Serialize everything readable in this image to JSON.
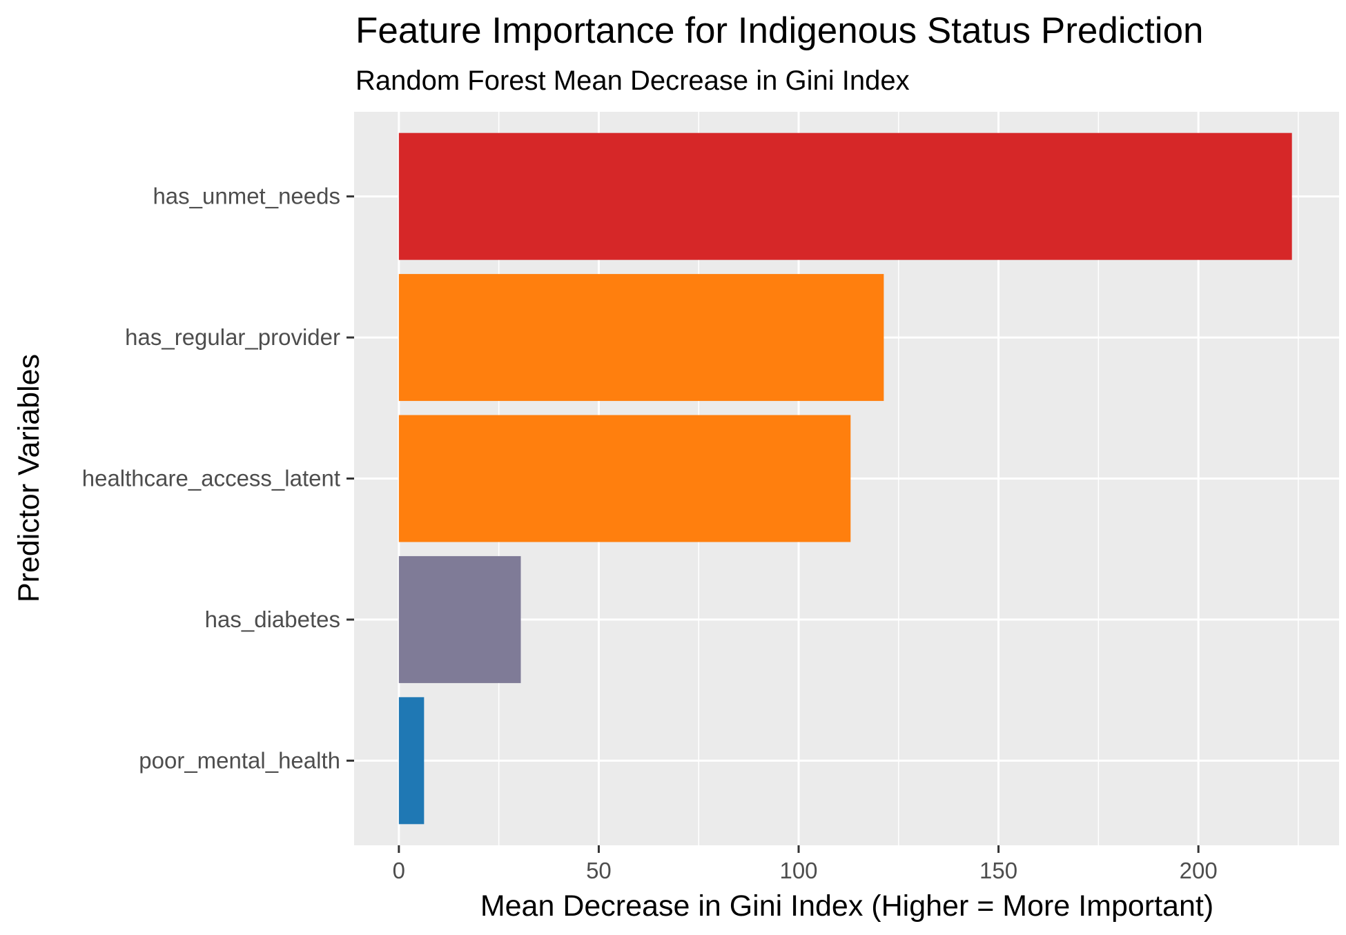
{
  "chart_data": {
    "type": "bar",
    "orientation": "horizontal",
    "title": "Feature Importance for Indigenous Status Prediction",
    "subtitle": "Random Forest Mean Decrease in Gini Index",
    "xlabel": "Mean Decrease in Gini Index (Higher = More Important)",
    "ylabel": "Predictor Variables",
    "xlim": [
      -11.2,
      235.2
    ],
    "x_ticks": [
      0,
      50,
      100,
      150,
      200
    ],
    "grid": true,
    "legend": "none",
    "categories": [
      "has_unmet_needs",
      "has_regular_provider",
      "healthcare_access_latent",
      "has_diabetes",
      "poor_mental_health"
    ],
    "values": [
      223.4,
      121.3,
      113.0,
      30.5,
      6.3
    ],
    "colors": [
      "#d62728",
      "#ff7f0e",
      "#ff7f0e",
      "#7f7b97",
      "#1f78b4"
    ],
    "panel_background": "#ebebeb",
    "grid_color": "#ffffff"
  }
}
